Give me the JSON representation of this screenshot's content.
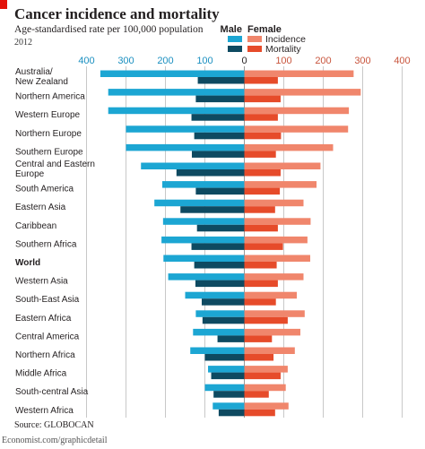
{
  "header": {
    "title": "Cancer incidence and mortality",
    "subtitle": "Age-standardised rate per 100,000 population",
    "year": "2012"
  },
  "footer": {
    "source": "Source: GLOBOCAN",
    "credit": "Economist.com/graphicdetail"
  },
  "colors": {
    "male_incidence": "#1ca6d3",
    "male_mortality": "#0e4a61",
    "female_incidence": "#f0866c",
    "female_mortality": "#e64b2a",
    "axis_left": "#1a8fc0",
    "axis_right": "#c8553d",
    "grid": "#c8c8c8"
  },
  "chart_data": {
    "type": "bar",
    "orientation": "horizontal",
    "layout": "diverging",
    "legend": {
      "male_header": "Male",
      "female_header": "Female",
      "incidence_label": "Incidence",
      "mortality_label": "Mortality",
      "placement": "top-right"
    },
    "axis_ticks_left": [
      "400",
      "300",
      "200",
      "100"
    ],
    "axis_ticks_center": "0",
    "axis_ticks_right": [
      "100",
      "200",
      "300",
      "400"
    ],
    "xlim": [
      -400,
      400
    ],
    "grid": true,
    "highlight_category": "World",
    "categories": [
      "Australia/\nNew Zealand",
      "Northern America",
      "Western Europe",
      "Northern Europe",
      "Southern Europe",
      "Central and Eastern\nEurope",
      "South America",
      "Eastern Asia",
      "Caribbean",
      "Southern Africa",
      "World",
      "Western Asia",
      "South-East Asia",
      "Eastern Africa",
      "Central America",
      "Northern Africa",
      "Middle Africa",
      "South-central Asia",
      "Western Africa"
    ],
    "series": [
      {
        "name": "Male Incidence",
        "values": [
          365,
          345,
          345,
          300,
          300,
          262,
          208,
          228,
          206,
          210,
          205,
          193,
          150,
          123,
          130,
          137,
          92,
          100,
          80
        ]
      },
      {
        "name": "Male Mortality",
        "values": [
          118,
          123,
          134,
          127,
          133,
          172,
          123,
          162,
          120,
          134,
          127,
          124,
          108,
          106,
          68,
          100,
          84,
          78,
          65
        ]
      },
      {
        "name": "Female Incidence",
        "values": [
          277,
          295,
          265,
          263,
          225,
          193,
          183,
          150,
          168,
          160,
          167,
          150,
          133,
          153,
          142,
          128,
          110,
          105,
          112
        ]
      },
      {
        "name": "Female Mortality",
        "values": [
          85,
          92,
          85,
          93,
          80,
          92,
          90,
          78,
          85,
          98,
          82,
          85,
          80,
          110,
          70,
          74,
          92,
          62,
          78
        ]
      }
    ]
  }
}
